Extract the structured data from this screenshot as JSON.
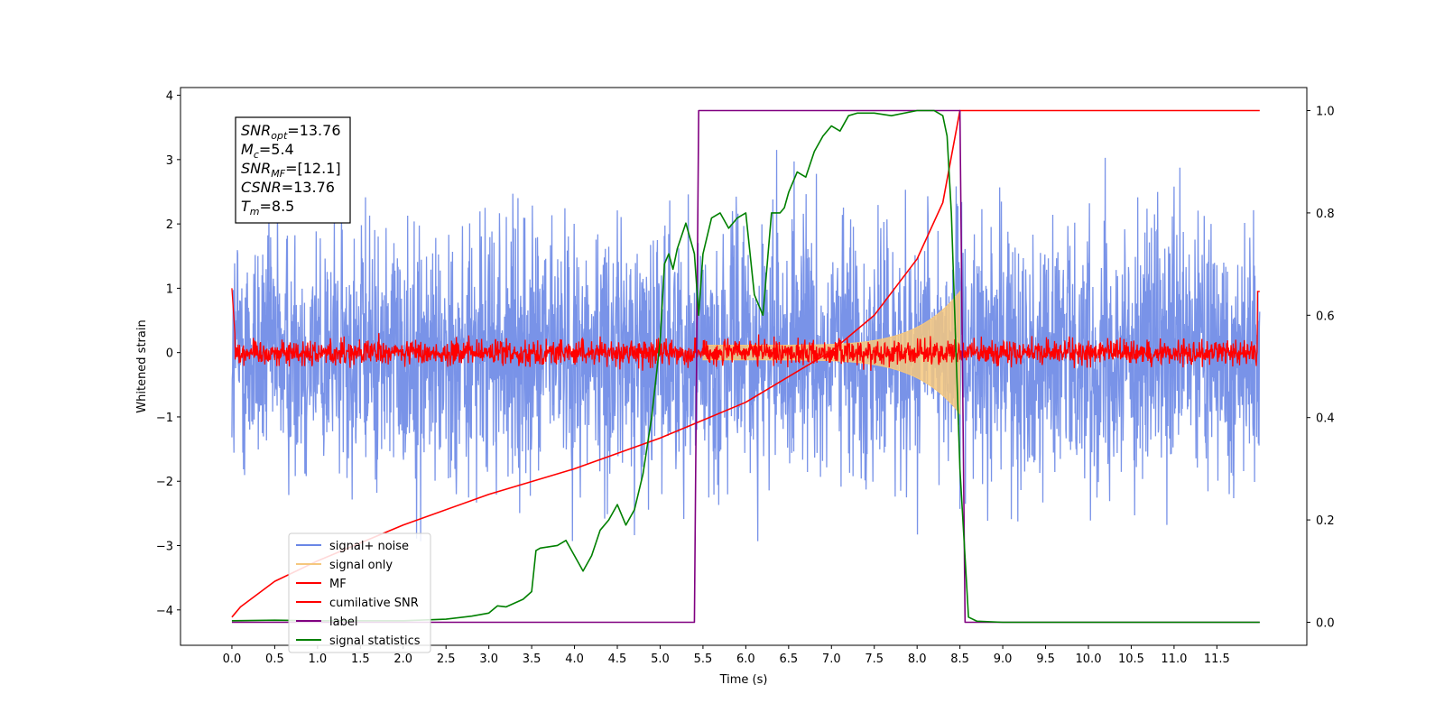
{
  "chart_data": {
    "type": "line",
    "xlabel": "Time (s)",
    "ylabel": "Whitened strain",
    "xlim": [
      -0.6,
      12.55
    ],
    "ylim": [
      -4.55,
      4.12
    ],
    "y2lim": [
      -0.045,
      1.045
    ],
    "x_ticks": [
      "0.0",
      "0.5",
      "1.0",
      "1.5",
      "2.0",
      "2.5",
      "3.0",
      "3.5",
      "4.0",
      "4.5",
      "5.0",
      "5.5",
      "6.0",
      "6.5",
      "7.0",
      "7.5",
      "8.0",
      "8.5",
      "9.0",
      "9.5",
      "10.0",
      "10.5",
      "11.0",
      "11.5"
    ],
    "y_ticks": [
      "4",
      "3",
      "2",
      "1",
      "0",
      "−1",
      "−2",
      "−3",
      "−4"
    ],
    "y2_ticks": [
      "1.0",
      "0.8",
      "0.6",
      "0.4",
      "0.2",
      "0.0"
    ],
    "legend_position": "lower-left",
    "annotation": [
      {
        "base": "SNR",
        "sub": "opt",
        "rest": "=13.76"
      },
      {
        "base": "M",
        "sub": "c",
        "rest": "=5.4"
      },
      {
        "base": "SNR",
        "sub": "MF",
        "rest": "=[12.1]"
      },
      {
        "base": "CSNR",
        "sub": "",
        "rest": "=13.76"
      },
      {
        "base": "T",
        "sub": "m",
        "rest": "=8.5"
      }
    ],
    "series": [
      {
        "name": "signal+ noise",
        "color": "#6a87e6",
        "axis": "left",
        "noise_amplitude": 1.9,
        "x_range": [
          0.0,
          12.0
        ]
      },
      {
        "name": "signal only",
        "color": "#f5c77e",
        "axis": "left",
        "chirp_start": 5.5,
        "chirp_end": 8.5,
        "peak_amplitude": 0.95
      },
      {
        "name": "MF",
        "color": "#ff0000",
        "axis": "left",
        "noise_amplitude": 0.22,
        "x_range": [
          0.0,
          12.0
        ]
      },
      {
        "name": "cumilative SNR",
        "color": "#ff0000",
        "axis": "right",
        "x": [
          0.0,
          0.1,
          0.5,
          1.0,
          2.0,
          3.0,
          4.0,
          5.0,
          6.0,
          7.0,
          7.5,
          8.0,
          8.3,
          8.5,
          12.0
        ],
        "y": [
          0.01,
          0.03,
          0.08,
          0.12,
          0.19,
          0.25,
          0.3,
          0.36,
          0.43,
          0.53,
          0.6,
          0.71,
          0.82,
          1.0,
          1.0
        ]
      },
      {
        "name": "label",
        "color": "#800080",
        "axis": "right",
        "x": [
          0.0,
          5.4,
          5.45,
          8.5,
          8.56,
          12.0
        ],
        "y": [
          0.0,
          0.0,
          1.0,
          1.0,
          0.0,
          0.0
        ]
      },
      {
        "name": "signal statistics",
        "color": "#008000",
        "axis": "right",
        "x": [
          0.0,
          0.5,
          1.0,
          2.0,
          2.5,
          2.8,
          3.0,
          3.1,
          3.2,
          3.4,
          3.5,
          3.55,
          3.6,
          3.8,
          3.9,
          4.0,
          4.1,
          4.2,
          4.3,
          4.4,
          4.5,
          4.6,
          4.7,
          4.8,
          4.9,
          5.0,
          5.05,
          5.1,
          5.15,
          5.2,
          5.3,
          5.4,
          5.45,
          5.5,
          5.6,
          5.7,
          5.8,
          5.9,
          6.0,
          6.1,
          6.2,
          6.3,
          6.4,
          6.45,
          6.5,
          6.6,
          6.7,
          6.8,
          6.9,
          7.0,
          7.1,
          7.2,
          7.3,
          7.5,
          7.7,
          8.0,
          8.2,
          8.3,
          8.35,
          8.4,
          8.5,
          8.6,
          8.7,
          9.0,
          12.0
        ],
        "y": [
          0.003,
          0.004,
          0.003,
          0.003,
          0.006,
          0.012,
          0.018,
          0.032,
          0.03,
          0.045,
          0.06,
          0.14,
          0.145,
          0.15,
          0.16,
          0.13,
          0.1,
          0.13,
          0.18,
          0.2,
          0.23,
          0.19,
          0.22,
          0.29,
          0.4,
          0.55,
          0.7,
          0.72,
          0.69,
          0.73,
          0.78,
          0.72,
          0.6,
          0.72,
          0.79,
          0.8,
          0.77,
          0.79,
          0.8,
          0.64,
          0.6,
          0.8,
          0.8,
          0.81,
          0.84,
          0.88,
          0.87,
          0.92,
          0.95,
          0.97,
          0.96,
          0.99,
          0.995,
          0.995,
          0.99,
          1.0,
          1.0,
          0.99,
          0.95,
          0.8,
          0.3,
          0.01,
          0.002,
          0.0,
          0.0
        ]
      }
    ]
  }
}
